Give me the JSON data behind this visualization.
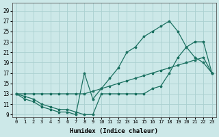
{
  "xlabel": "Humidex (Indice chaleur)",
  "bg_color": "#cce8e8",
  "grid_color": "#aad0d0",
  "line_color": "#1a7060",
  "xlim": [
    -0.5,
    23.5
  ],
  "ylim": [
    8.5,
    30.5
  ],
  "xticks": [
    0,
    1,
    2,
    3,
    4,
    5,
    6,
    7,
    8,
    9,
    10,
    11,
    12,
    13,
    14,
    15,
    16,
    17,
    18,
    19,
    20,
    21,
    22,
    23
  ],
  "yticks": [
    9,
    11,
    13,
    15,
    17,
    19,
    21,
    23,
    25,
    27,
    29
  ],
  "curve_straight_x": [
    0,
    1,
    2,
    3,
    4,
    5,
    6,
    7,
    8,
    9,
    10,
    11,
    12,
    13,
    14,
    15,
    16,
    17,
    18,
    19,
    20,
    21,
    22,
    23
  ],
  "curve_straight_y": [
    13,
    13,
    13,
    13,
    13,
    13,
    13,
    13,
    13,
    13.5,
    14,
    14.5,
    15,
    15.5,
    16,
    16.5,
    17,
    17.5,
    18,
    18.5,
    19,
    19.5,
    20,
    17
  ],
  "curve_mid_x": [
    0,
    1,
    2,
    3,
    4,
    5,
    6,
    7,
    8,
    9,
    10,
    11,
    12,
    13,
    14,
    15,
    16,
    17,
    18,
    19,
    20,
    21,
    22,
    23
  ],
  "curve_mid_y": [
    13,
    12,
    11.5,
    10.5,
    10,
    9.5,
    9.5,
    9,
    17,
    12,
    14,
    16,
    18,
    21,
    22,
    24,
    25,
    26,
    27,
    25,
    22,
    20,
    19,
    17
  ],
  "curve_top_x": [
    0,
    1,
    2,
    3,
    4,
    5,
    6,
    7,
    8,
    9,
    10,
    11,
    12,
    13,
    14,
    15,
    16,
    17,
    18,
    19,
    20,
    21,
    22,
    23
  ],
  "curve_top_y": [
    13,
    12.5,
    12,
    11,
    10.5,
    10,
    10,
    9.5,
    9,
    9,
    13,
    13,
    13,
    13,
    13,
    13,
    14,
    14.5,
    17,
    20,
    22,
    23,
    23,
    17
  ]
}
